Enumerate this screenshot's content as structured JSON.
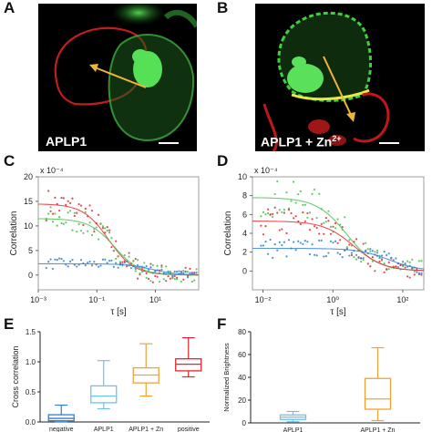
{
  "panels": {
    "A": {
      "letter": "A",
      "label": "APLP1"
    },
    "B": {
      "letter": "B",
      "label_main": "APLP1 + Zn",
      "label_sup": "2+"
    },
    "C": {
      "letter": "C"
    },
    "D": {
      "letter": "D"
    },
    "E": {
      "letter": "E"
    },
    "F": {
      "letter": "F"
    }
  },
  "colors": {
    "red": "#e8262d",
    "green": "#48c148",
    "blue": "#2f7fd0",
    "box_blue": "#6fc3ea",
    "box_orange": "#f1a236",
    "box_red": "#e0262b"
  },
  "chart_data": [
    {
      "id": "C",
      "type": "scatter",
      "ylabel": "Correlation",
      "xlabel": "τ [s]",
      "exponent": "x 10⁻⁴",
      "xscale": "log",
      "xlim": [
        0.001,
        300
      ],
      "ylim": [
        -3,
        20
      ],
      "yticks": [
        0,
        5,
        10,
        15,
        20
      ],
      "xticks": [
        "10⁻³",
        "10⁻¹",
        "10¹"
      ],
      "series": [
        {
          "color": "red",
          "amplitude": 14.5,
          "tau": 0.25
        },
        {
          "color": "green",
          "amplitude": 11.5,
          "tau": 0.4
        },
        {
          "color": "blue",
          "amplitude": 2.3,
          "tau": 8
        }
      ]
    },
    {
      "id": "D",
      "type": "scatter",
      "ylabel": "Correlation",
      "xlabel": "τ [s]",
      "exponent": "x 10⁻⁴",
      "xscale": "log",
      "xlim": [
        0.005,
        400
      ],
      "ylim": [
        -2,
        10
      ],
      "yticks": [
        0,
        2,
        4,
        6,
        8,
        10
      ],
      "xticks": [
        "10⁻²",
        "10⁰",
        "10²"
      ],
      "series": [
        {
          "color": "green",
          "amplitude": 7.8,
          "tau": 2.5
        },
        {
          "color": "red",
          "amplitude": 5.3,
          "tau": 4
        },
        {
          "color": "blue",
          "amplitude": 2.4,
          "tau": 40
        }
      ]
    },
    {
      "id": "E",
      "type": "box",
      "ylabel": "Cross correlation",
      "ylim": [
        0,
        1.5
      ],
      "yticks": [
        "0.0",
        "0.5",
        "1.0",
        "1.5"
      ],
      "categories": [
        "negative",
        "APLP1",
        "APLP1 + Zn",
        "positive"
      ],
      "boxes": [
        {
          "color": "blue",
          "min": 0.0,
          "q1": 0.02,
          "median": 0.06,
          "q3": 0.12,
          "max": 0.28
        },
        {
          "color": "box_blue",
          "min": 0.22,
          "q1": 0.32,
          "median": 0.43,
          "q3": 0.6,
          "max": 1.02
        },
        {
          "color": "box_orange",
          "min": 0.43,
          "q1": 0.65,
          "median": 0.78,
          "q3": 0.9,
          "max": 1.3
        },
        {
          "color": "box_red",
          "min": 0.75,
          "q1": 0.85,
          "median": 0.96,
          "q3": 1.05,
          "max": 1.4
        }
      ]
    },
    {
      "id": "F",
      "type": "box",
      "ylabel": "Normalized Brightness",
      "ylim": [
        0,
        80
      ],
      "yticks": [
        "0",
        "20",
        "40",
        "60",
        "80"
      ],
      "categories": [
        "APLP1",
        "APLP1 + Zn"
      ],
      "boxes": [
        {
          "color": "box_blue",
          "min": 1,
          "q1": 3,
          "median": 5,
          "q3": 7,
          "max": 10
        },
        {
          "color": "box_orange",
          "min": 2,
          "q1": 12,
          "median": 21,
          "q3": 39,
          "max": 66
        }
      ]
    }
  ]
}
